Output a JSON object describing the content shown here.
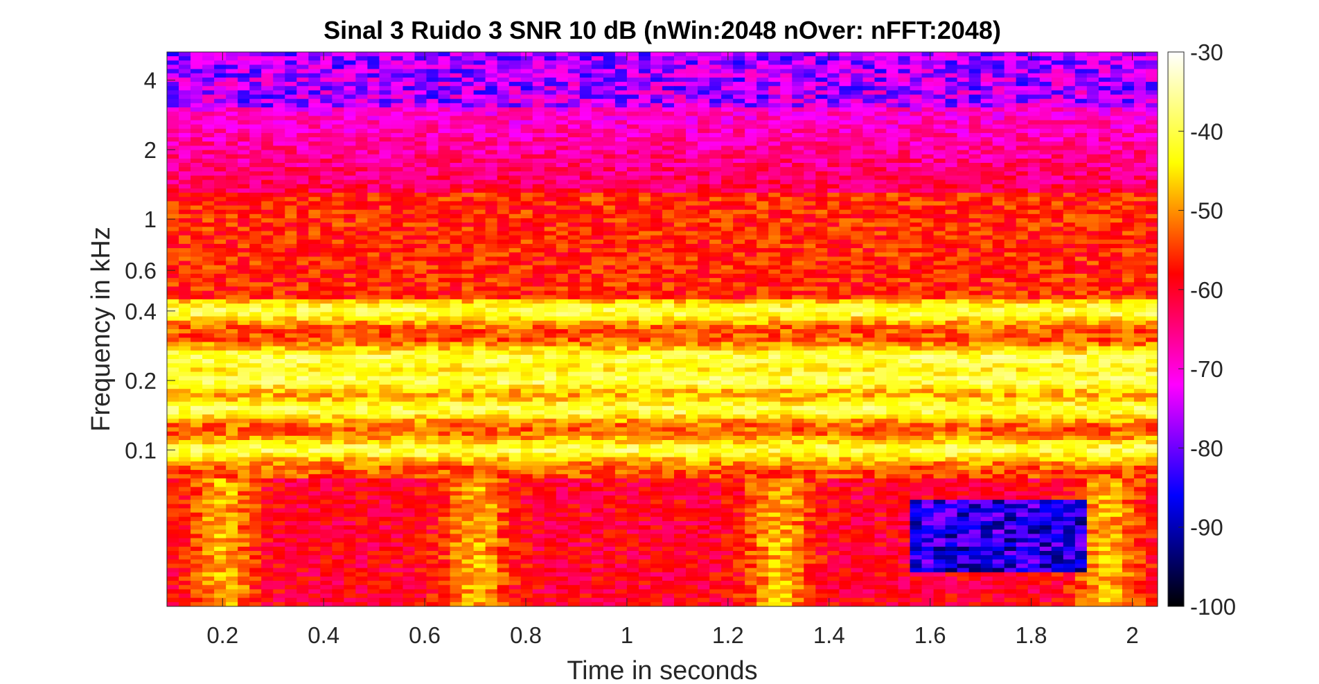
{
  "chart_data": {
    "type": "heatmap",
    "title": "Sinal 3 Ruido 3 SNR 10 dB (nWin:2048 nOver: nFFT:2048)",
    "xlabel": "Time in seconds",
    "ylabel": "Frequency in kHz",
    "x_ticks": [
      "0.2",
      "0.4",
      "0.6",
      "0.8",
      "1",
      "1.2",
      "1.4",
      "1.6",
      "1.8",
      "2"
    ],
    "x_tick_values": [
      0.2,
      0.4,
      0.6,
      0.8,
      1.0,
      1.2,
      1.4,
      1.6,
      1.8,
      2.0
    ],
    "xlim": [
      0.09,
      2.05
    ],
    "y_ticks": [
      "0.1",
      "0.2",
      "0.4",
      "0.6",
      "1",
      "2",
      "4"
    ],
    "y_tick_values": [
      0.1,
      0.2,
      0.4,
      0.6,
      1,
      2,
      4
    ],
    "y_scale": "log",
    "ylim": [
      0.021,
      5.3
    ],
    "colorbar": {
      "ticks": [
        "-30",
        "-40",
        "-50",
        "-60",
        "-70",
        "-80",
        "-90",
        "-100"
      ],
      "tick_values": [
        -30,
        -40,
        -50,
        -60,
        -70,
        -80,
        -90,
        -100
      ],
      "range": [
        -100,
        -30
      ],
      "colormap": [
        "#000000",
        "#0000ff",
        "#ff00ff",
        "#ff0000",
        "#ffff00",
        "#ffffff"
      ]
    },
    "features": {
      "bright_bands_khz": [
        0.1,
        0.15,
        0.2,
        0.25,
        0.4
      ],
      "bright_columns_s": [
        0.2,
        0.7,
        1.3,
        1.95
      ],
      "dark_regions": [
        {
          "t": [
            1.55,
            1.9
          ],
          "f_khz": [
            0.03,
            0.06
          ],
          "level_db": -90
        },
        {
          "t": [
            0.1,
            2.05
          ],
          "f_khz": [
            3.0,
            5.3
          ],
          "level_db": -80
        }
      ]
    }
  }
}
